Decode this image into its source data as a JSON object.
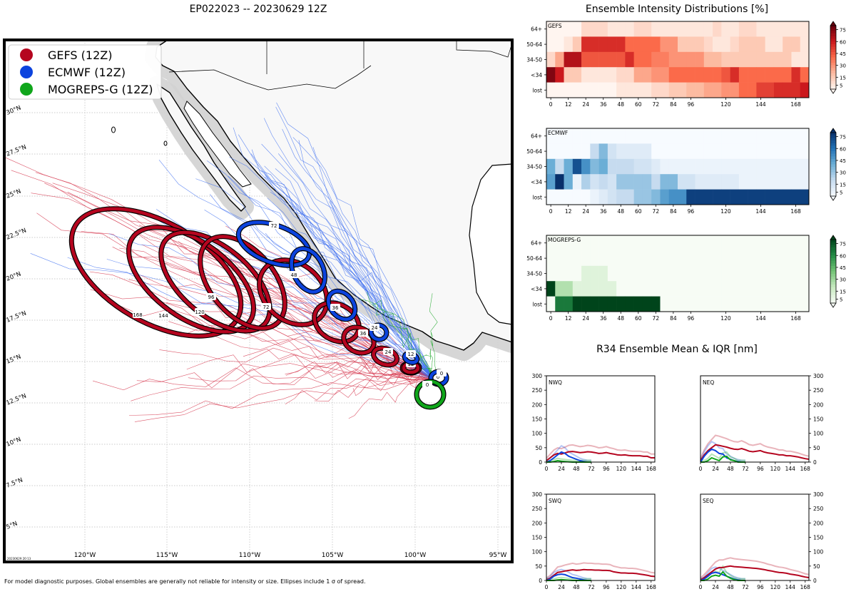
{
  "main_title": "EP022023 -- 20230629 12Z",
  "footer": "For model diagnostic purposes. Global ensembles are generally not reliable for intensity or size. Ellipses include 1 σ of spread.",
  "map_stamp": "20230629 20:13",
  "map": {
    "lon_ticks": [
      "120°W",
      "115°W",
      "110°W",
      "105°W",
      "100°W",
      "95°W"
    ],
    "lat_ticks": [
      "30°N",
      "27.5°N",
      "25°N",
      "22.5°N",
      "20°N",
      "17.5°N",
      "15°N",
      "12.5°N",
      "10°N",
      "7.5°N",
      "5°N"
    ],
    "legend": [
      {
        "label": "GEFS (12Z)",
        "color": "#b5051f"
      },
      {
        "label": "ECMWF (12Z)",
        "color": "#0c43de"
      },
      {
        "label": "MOGREPS-G (12Z)",
        "color": "#10a61b"
      }
    ],
    "ellipse_labels": {
      "gefs": [
        "0",
        "12",
        "24",
        "36",
        "48",
        "72",
        "96",
        "120",
        "144",
        "168"
      ],
      "ecmwf": [
        "0",
        "12",
        "24",
        "36",
        "48",
        "72"
      ],
      "mogreps": [
        "0"
      ]
    }
  },
  "intensity": {
    "title": "Ensemble Intensity Distributions [%]",
    "row_labels": [
      "64+",
      "50-64",
      "34-50",
      "<34",
      "lost"
    ],
    "x_ticks": [
      "0",
      "12",
      "24",
      "36",
      "48",
      "60",
      "72",
      "84",
      "96",
      "120",
      "144",
      "168"
    ],
    "colorbar_ticks": [
      "75",
      "60",
      "45",
      "30",
      "15",
      "5"
    ],
    "panels": [
      {
        "name": "GEFS",
        "cmap": "reds"
      },
      {
        "name": "ECMWF",
        "cmap": "blues"
      },
      {
        "name": "MOGREPS-G",
        "cmap": "greens"
      }
    ]
  },
  "r34": {
    "title": "R34 Ensemble Mean & IQR [nm]",
    "y_ticks": [
      "0",
      "50",
      "100",
      "150",
      "200",
      "250",
      "300"
    ],
    "x_ticks": [
      "0",
      "24",
      "48",
      "72",
      "96",
      "120",
      "144",
      "168"
    ],
    "panels": [
      "NWQ",
      "NEQ",
      "SWQ",
      "SEQ"
    ]
  },
  "chart_data": [
    {
      "type": "heatmap",
      "name": "GEFS",
      "x": [
        0,
        6,
        12,
        18,
        24,
        30,
        36,
        42,
        48,
        54,
        60,
        66,
        72,
        78,
        84,
        90,
        96,
        102,
        108,
        114,
        120,
        126,
        132,
        138,
        144,
        150,
        156,
        162,
        168,
        174
      ],
      "y": [
        "64+",
        "50-64",
        "34-50",
        "<34",
        "lost"
      ],
      "values_percent": [
        [
          0,
          0,
          0,
          0,
          10,
          10,
          10,
          5,
          5,
          5,
          10,
          10,
          5,
          5,
          5,
          5,
          5,
          5,
          5,
          10,
          5,
          5,
          10,
          10,
          5,
          5,
          5,
          5,
          5,
          5
        ],
        [
          0,
          0,
          5,
          15,
          55,
          55,
          55,
          55,
          55,
          40,
          40,
          40,
          40,
          30,
          30,
          15,
          15,
          15,
          10,
          5,
          5,
          10,
          15,
          15,
          15,
          5,
          5,
          15,
          15,
          5
        ],
        [
          10,
          25,
          65,
          65,
          45,
          45,
          45,
          45,
          45,
          55,
          40,
          40,
          35,
          35,
          30,
          30,
          30,
          30,
          20,
          20,
          15,
          15,
          15,
          15,
          15,
          15,
          15,
          15,
          5,
          5
        ],
        [
          75,
          60,
          15,
          15,
          5,
          5,
          5,
          5,
          10,
          10,
          25,
          25,
          30,
          30,
          40,
          40,
          40,
          40,
          40,
          40,
          45,
          55,
          40,
          40,
          40,
          40,
          40,
          40,
          55,
          40
        ],
        [
          0,
          0,
          0,
          0,
          0,
          0,
          0,
          0,
          5,
          5,
          5,
          5,
          10,
          10,
          15,
          15,
          20,
          20,
          25,
          25,
          30,
          30,
          40,
          40,
          50,
          50,
          55,
          55,
          55,
          60
        ]
      ]
    },
    {
      "type": "heatmap",
      "name": "ECMWF",
      "x": [
        0,
        6,
        12,
        18,
        24,
        30,
        36,
        42,
        48,
        54,
        60,
        66,
        72,
        78,
        84,
        90,
        96,
        102,
        108,
        114,
        120,
        126,
        132,
        138,
        144,
        150,
        156,
        162,
        168,
        174
      ],
      "y": [
        "64+",
        "50-64",
        "34-50",
        "<34",
        "lost"
      ],
      "values_percent": [
        [
          0,
          0,
          0,
          0,
          0,
          0,
          0,
          0,
          0,
          0,
          0,
          0,
          0,
          0,
          0,
          0,
          0,
          0,
          0,
          0,
          0,
          0,
          0,
          0,
          0,
          0,
          0,
          0,
          0,
          0
        ],
        [
          0,
          0,
          0,
          0,
          0,
          20,
          35,
          15,
          10,
          10,
          10,
          10,
          0,
          0,
          0,
          0,
          0,
          0,
          0,
          0,
          0,
          0,
          0,
          0,
          0,
          0,
          0,
          0,
          0,
          0
        ],
        [
          40,
          20,
          40,
          70,
          50,
          35,
          40,
          20,
          20,
          20,
          15,
          15,
          10,
          5,
          5,
          5,
          5,
          5,
          5,
          5,
          5,
          5,
          5,
          5,
          5,
          5,
          5,
          5,
          5,
          5
        ],
        [
          45,
          80,
          40,
          5,
          25,
          15,
          20,
          15,
          30,
          30,
          30,
          30,
          20,
          35,
          35,
          15,
          15,
          10,
          10,
          10,
          10,
          10,
          5,
          5,
          5,
          5,
          5,
          5,
          5,
          5
        ],
        [
          0,
          0,
          0,
          0,
          0,
          5,
          10,
          15,
          20,
          20,
          30,
          30,
          35,
          45,
          50,
          50,
          75,
          75,
          75,
          75,
          75,
          75,
          75,
          75,
          75,
          75,
          75,
          75,
          75,
          75
        ]
      ]
    },
    {
      "type": "heatmap",
      "name": "MOGREPS-G",
      "x": [
        0,
        6,
        12,
        18,
        24,
        30,
        36,
        42,
        48,
        54,
        60,
        66,
        72,
        78,
        84,
        90,
        96,
        102,
        108,
        114,
        120,
        126,
        132,
        138,
        144,
        150,
        156,
        162,
        168,
        174
      ],
      "y": [
        "64+",
        "50-64",
        "34-50",
        "<34",
        "lost"
      ],
      "values_percent": [
        [
          0,
          0,
          0,
          0,
          0,
          0,
          0,
          0,
          0,
          0,
          0,
          0,
          0,
          0,
          0,
          0,
          0,
          0,
          0,
          0,
          0,
          0,
          0,
          0,
          0,
          0,
          0,
          0,
          0,
          0
        ],
        [
          0,
          0,
          0,
          0,
          0,
          0,
          0,
          0,
          0,
          0,
          0,
          0,
          0,
          0,
          0,
          0,
          0,
          0,
          0,
          0,
          0,
          0,
          0,
          0,
          0,
          0,
          0,
          0,
          0,
          0
        ],
        [
          0,
          0,
          0,
          0,
          10,
          10,
          10,
          0,
          0,
          0,
          0,
          0,
          0,
          0,
          0,
          0,
          0,
          0,
          0,
          0,
          0,
          0,
          0,
          0,
          0,
          0,
          0,
          0,
          0,
          0
        ],
        [
          80,
          25,
          25,
          10,
          10,
          10,
          10,
          10,
          0,
          0,
          0,
          0,
          0,
          0,
          0,
          0,
          0,
          0,
          0,
          0,
          0,
          0,
          0,
          0,
          0,
          0,
          0,
          0,
          0,
          0
        ],
        [
          0,
          65,
          65,
          80,
          80,
          80,
          80,
          80,
          80,
          80,
          80,
          80,
          80,
          0,
          0,
          0,
          0,
          0,
          0,
          0,
          0,
          0,
          0,
          0,
          0,
          0,
          0,
          0,
          0,
          0
        ]
      ]
    },
    {
      "type": "line",
      "name": "NWQ",
      "x": [
        0,
        6,
        12,
        18,
        24,
        30,
        36,
        42,
        48,
        54,
        60,
        66,
        72,
        78,
        84,
        90,
        96,
        102,
        108,
        114,
        120,
        126,
        132,
        138,
        144,
        150,
        156,
        162,
        168,
        174
      ],
      "ylim": [
        0,
        300
      ],
      "series": [
        {
          "color": "#b5051f",
          "values": [
            5,
            15,
            25,
            30,
            28,
            32,
            36,
            37,
            35,
            33,
            34,
            36,
            35,
            33,
            30,
            31,
            33,
            30,
            28,
            25,
            24,
            25,
            23,
            22,
            22,
            22,
            20,
            20,
            15,
            15
          ]
        },
        {
          "color": "#0c43de",
          "values": [
            0,
            5,
            15,
            25,
            35,
            30,
            20,
            15,
            10,
            5,
            2,
            0,
            0,
            null,
            null,
            null,
            null,
            null,
            null,
            null,
            null,
            null,
            null,
            null,
            null,
            null,
            null,
            null,
            null,
            null
          ]
        },
        {
          "color": "#10a61b",
          "values": [
            0,
            0,
            2,
            5,
            3,
            2,
            1,
            0,
            0,
            0,
            0,
            0,
            0,
            null,
            null,
            null,
            null,
            null,
            null,
            null,
            null,
            null,
            null,
            null,
            null,
            null,
            null,
            null,
            null,
            null
          ]
        }
      ]
    },
    {
      "type": "line",
      "name": "NEQ",
      "x": [
        0,
        6,
        12,
        18,
        24,
        30,
        36,
        42,
        48,
        54,
        60,
        66,
        72,
        78,
        84,
        90,
        96,
        102,
        108,
        114,
        120,
        126,
        132,
        138,
        144,
        150,
        156,
        162,
        168,
        174
      ],
      "ylim": [
        0,
        300
      ],
      "series": [
        {
          "color": "#b5051f",
          "values": [
            5,
            25,
            40,
            50,
            60,
            58,
            55,
            52,
            48,
            45,
            44,
            47,
            43,
            38,
            36,
            38,
            40,
            35,
            32,
            30,
            28,
            25,
            25,
            22,
            22,
            20,
            18,
            15,
            12,
            10
          ]
        },
        {
          "color": "#0c43de",
          "values": [
            0,
            20,
            35,
            45,
            40,
            30,
            28,
            15,
            10,
            5,
            2,
            0,
            0,
            null,
            null,
            null,
            null,
            null,
            null,
            null,
            null,
            null,
            null,
            null,
            null,
            null,
            null,
            null,
            null,
            null
          ]
        },
        {
          "color": "#10a61b",
          "values": [
            0,
            0,
            5,
            15,
            10,
            5,
            18,
            20,
            8,
            5,
            0,
            0,
            0,
            null,
            null,
            null,
            null,
            null,
            null,
            null,
            null,
            null,
            null,
            null,
            null,
            null,
            null,
            null,
            null,
            null
          ]
        }
      ]
    },
    {
      "type": "line",
      "name": "SWQ",
      "x": [
        0,
        6,
        12,
        18,
        24,
        30,
        36,
        42,
        48,
        54,
        60,
        66,
        72,
        78,
        84,
        90,
        96,
        102,
        108,
        114,
        120,
        126,
        132,
        138,
        144,
        150,
        156,
        162,
        168,
        174
      ],
      "ylim": [
        0,
        300
      ],
      "series": [
        {
          "color": "#b5051f",
          "values": [
            2,
            8,
            18,
            28,
            30,
            33,
            35,
            37,
            35,
            36,
            38,
            37,
            37,
            36,
            36,
            35,
            35,
            34,
            30,
            28,
            26,
            26,
            25,
            25,
            24,
            22,
            20,
            18,
            15,
            14
          ]
        },
        {
          "color": "#0c43de",
          "values": [
            0,
            5,
            15,
            20,
            22,
            20,
            15,
            10,
            8,
            5,
            2,
            0,
            0,
            null,
            null,
            null,
            null,
            null,
            null,
            null,
            null,
            null,
            null,
            null,
            null,
            null,
            null,
            null,
            null,
            null
          ]
        },
        {
          "color": "#10a61b",
          "values": [
            0,
            0,
            0,
            2,
            3,
            2,
            1,
            0,
            0,
            0,
            0,
            0,
            0,
            null,
            null,
            null,
            null,
            null,
            null,
            null,
            null,
            null,
            null,
            null,
            null,
            null,
            null,
            null,
            null,
            null
          ]
        }
      ]
    },
    {
      "type": "line",
      "name": "SEQ",
      "x": [
        0,
        6,
        12,
        18,
        24,
        30,
        36,
        42,
        48,
        54,
        60,
        66,
        72,
        78,
        84,
        90,
        96,
        102,
        108,
        114,
        120,
        126,
        132,
        138,
        144,
        150,
        156,
        162,
        168,
        174
      ],
      "ylim": [
        0,
        300
      ],
      "series": [
        {
          "color": "#b5051f",
          "values": [
            2,
            10,
            20,
            30,
            40,
            45,
            45,
            48,
            50,
            48,
            47,
            46,
            45,
            44,
            43,
            42,
            40,
            38,
            35,
            33,
            30,
            28,
            27,
            25,
            22,
            20,
            18,
            15,
            12,
            10
          ]
        },
        {
          "color": "#0c43de",
          "values": [
            0,
            5,
            15,
            25,
            28,
            25,
            20,
            15,
            10,
            5,
            2,
            0,
            0,
            null,
            null,
            null,
            null,
            null,
            null,
            null,
            null,
            null,
            null,
            null,
            null,
            null,
            null,
            null,
            null,
            null
          ]
        },
        {
          "color": "#10a61b",
          "values": [
            0,
            0,
            5,
            15,
            18,
            15,
            30,
            15,
            8,
            3,
            0,
            0,
            0,
            null,
            null,
            null,
            null,
            null,
            null,
            null,
            null,
            null,
            null,
            null,
            null,
            null,
            null,
            null,
            null,
            null
          ]
        }
      ]
    }
  ]
}
